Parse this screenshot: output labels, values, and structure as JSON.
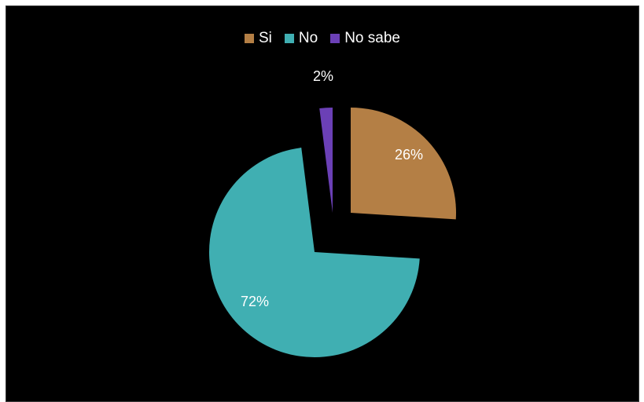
{
  "chart_data": {
    "type": "pie",
    "categories": [
      "Si",
      "No",
      "No sabe"
    ],
    "values": [
      26,
      72,
      2
    ],
    "labels": [
      "26%",
      "72%",
      "2%"
    ],
    "colors": [
      "#B47F45",
      "#40AFB2",
      "#6B40B6"
    ],
    "legend_position": "top",
    "exploded": true
  }
}
